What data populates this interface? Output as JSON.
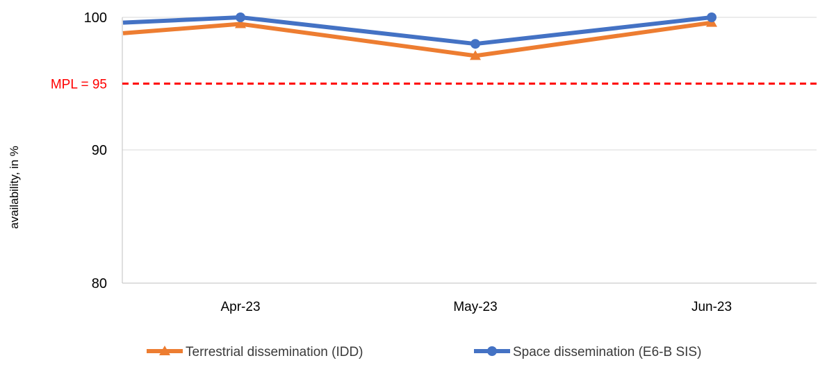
{
  "chart_data": {
    "type": "line",
    "title": "",
    "xlabel": "",
    "ylabel": "availability, in %",
    "categories": [
      "Apr-23",
      "May-23",
      "Jun-23"
    ],
    "y_ticks": [
      80,
      90,
      100
    ],
    "y_breakpoints": [
      80,
      90,
      100
    ],
    "ylim": [
      80,
      100
    ],
    "grid": true,
    "legend_position": "bottom",
    "x_extent_categories": [
      -0.5,
      2.5
    ],
    "series": [
      {
        "name": "Terrestrial dissemination (IDD)",
        "color": "#ED7D31",
        "marker": "triangle",
        "x": [
          -0.5,
          0,
          1,
          2
        ],
        "values": [
          98.8,
          99.5,
          97.1,
          99.6
        ]
      },
      {
        "name": "Space dissemination (E6-B SIS)",
        "color": "#4472C4",
        "marker": "circle",
        "x": [
          -0.5,
          0,
          1,
          2
        ],
        "values": [
          99.6,
          100,
          98.0,
          100
        ]
      }
    ],
    "annotations": [
      {
        "label": "MPL = 95",
        "y": 95,
        "color": "#FF0000",
        "style": "dashed"
      }
    ]
  }
}
